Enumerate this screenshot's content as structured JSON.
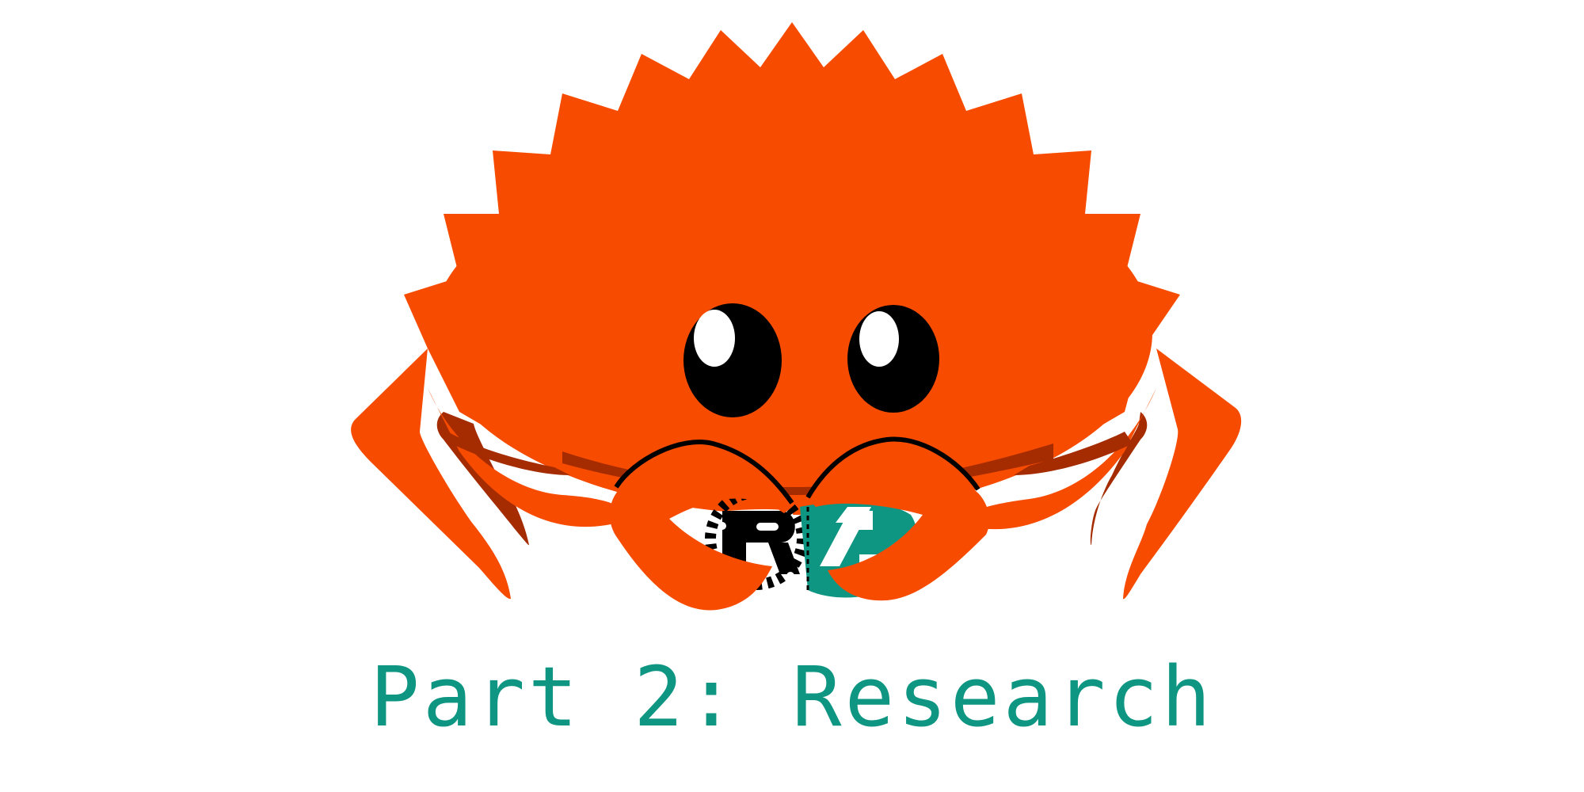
{
  "slide": {
    "caption": "Part 2: Research"
  },
  "colors": {
    "crab_body": "#f74c00",
    "crab_shadow": "#a52b00",
    "eye": "#000000",
    "eye_highlight": "#ffffff",
    "caption": "#0f9683",
    "rust_logo": "#000000",
    "zig_logo": "#0f9683"
  },
  "icons": {
    "mascot": "ferris-crab-icon",
    "held_left": "rust-gear-logo-icon",
    "held_right": "zig-logo-icon"
  }
}
